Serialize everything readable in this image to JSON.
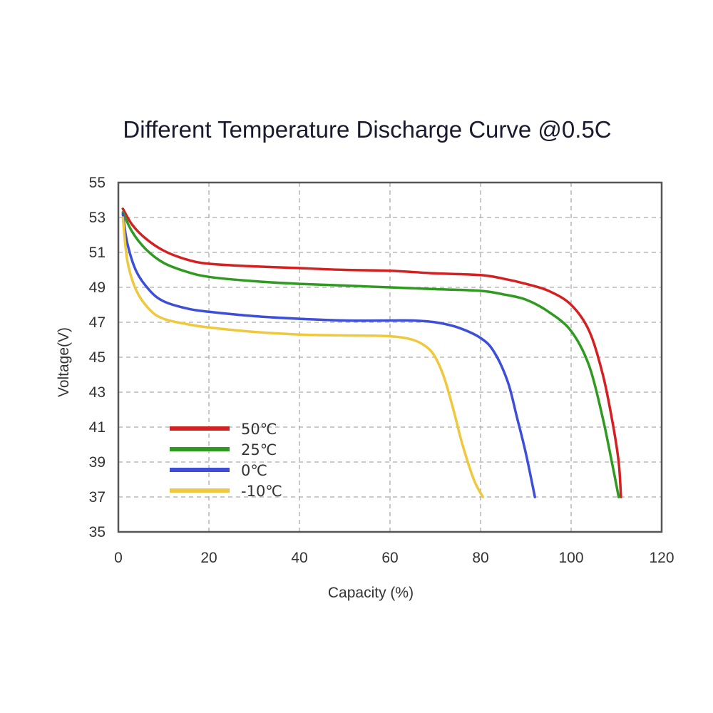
{
  "chart_data": {
    "type": "line",
    "title": "Different Temperature Discharge Curve @0.5C",
    "xlabel": "Capacity (%)",
    "ylabel": "Voltage(V)",
    "xlim": [
      0,
      120
    ],
    "ylim": [
      35,
      55
    ],
    "xticks": [
      "0",
      "20",
      "40",
      "60",
      "80",
      "100",
      "120"
    ],
    "yticks": [
      "35",
      "37",
      "39",
      "41",
      "43",
      "45",
      "47",
      "49",
      "51",
      "53",
      "55"
    ],
    "grid": true,
    "legend_position": "lower-left",
    "series": [
      {
        "name": "50℃",
        "color": "#d42020",
        "points": [
          [
            1,
            53.5
          ],
          [
            3,
            52.6
          ],
          [
            6,
            51.8
          ],
          [
            10,
            51.1
          ],
          [
            15,
            50.6
          ],
          [
            20,
            50.35
          ],
          [
            30,
            50.2
          ],
          [
            40,
            50.1
          ],
          [
            50,
            50.0
          ],
          [
            60,
            49.95
          ],
          [
            70,
            49.8
          ],
          [
            80,
            49.7
          ],
          [
            85,
            49.5
          ],
          [
            90,
            49.2
          ],
          [
            95,
            48.8
          ],
          [
            100,
            48.0
          ],
          [
            104,
            46.5
          ],
          [
            107,
            44.0
          ],
          [
            109,
            41.5
          ],
          [
            110.5,
            39.0
          ],
          [
            111,
            37.0
          ]
        ]
      },
      {
        "name": "25℃",
        "color": "#2e9a20",
        "points": [
          [
            1,
            53.3
          ],
          [
            3,
            52.2
          ],
          [
            6,
            51.2
          ],
          [
            10,
            50.4
          ],
          [
            15,
            49.9
          ],
          [
            20,
            49.6
          ],
          [
            30,
            49.35
          ],
          [
            40,
            49.2
          ],
          [
            50,
            49.1
          ],
          [
            60,
            49.0
          ],
          [
            70,
            48.9
          ],
          [
            80,
            48.8
          ],
          [
            85,
            48.6
          ],
          [
            90,
            48.3
          ],
          [
            95,
            47.6
          ],
          [
            100,
            46.5
          ],
          [
            104,
            44.5
          ],
          [
            107,
            41.5
          ],
          [
            109,
            39.0
          ],
          [
            110.5,
            37.0
          ]
        ]
      },
      {
        "name": "0℃",
        "color": "#3d4fd8",
        "points": [
          [
            1,
            53.2
          ],
          [
            2,
            51.5
          ],
          [
            4,
            49.9
          ],
          [
            7,
            48.8
          ],
          [
            10,
            48.2
          ],
          [
            15,
            47.8
          ],
          [
            20,
            47.6
          ],
          [
            30,
            47.35
          ],
          [
            40,
            47.2
          ],
          [
            50,
            47.1
          ],
          [
            60,
            47.1
          ],
          [
            65,
            47.1
          ],
          [
            70,
            47.0
          ],
          [
            75,
            46.7
          ],
          [
            80,
            46.1
          ],
          [
            83,
            45.3
          ],
          [
            86,
            43.6
          ],
          [
            88,
            41.6
          ],
          [
            90,
            39.5
          ],
          [
            92,
            37.0
          ]
        ]
      },
      {
        "name": "-10℃",
        "color": "#f0c83c",
        "points": [
          [
            1,
            53.0
          ],
          [
            2,
            50.5
          ],
          [
            4,
            48.8
          ],
          [
            7,
            47.7
          ],
          [
            10,
            47.2
          ],
          [
            15,
            46.9
          ],
          [
            20,
            46.7
          ],
          [
            30,
            46.45
          ],
          [
            40,
            46.3
          ],
          [
            50,
            46.25
          ],
          [
            60,
            46.2
          ],
          [
            65,
            46.0
          ],
          [
            68,
            45.6
          ],
          [
            70,
            45.0
          ],
          [
            72,
            43.8
          ],
          [
            74,
            42.0
          ],
          [
            76,
            40.0
          ],
          [
            78.5,
            38.0
          ],
          [
            80.5,
            37.0
          ]
        ]
      }
    ]
  }
}
